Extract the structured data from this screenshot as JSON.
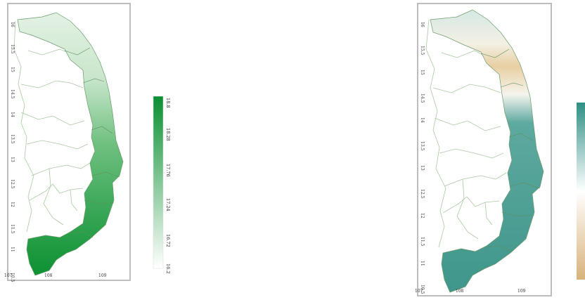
{
  "left_map": {
    "y_ticks": [
      "16",
      "15.5",
      "15",
      "14.5",
      "14",
      "13.5",
      "13",
      "12.5",
      "12",
      "11.5",
      "11",
      "10.5"
    ],
    "x_ticks": [
      "107",
      "108",
      "109"
    ],
    "colorbar": {
      "ticks": [
        "18.8",
        "18.28",
        "17.76",
        "17.24",
        "16.72",
        "16.2"
      ],
      "range": [
        16.2,
        18.8
      ],
      "colors": [
        "#ffffff",
        "#0b8f31"
      ]
    }
  },
  "right_map": {
    "y_ticks": [
      "16",
      "15.5",
      "15",
      "14.5",
      "14",
      "13.5",
      "13",
      "12.5",
      "12",
      "11.5",
      "11",
      "10.5"
    ],
    "x_ticks": [
      "107",
      "108",
      "109"
    ],
    "colorbar": {
      "colors": [
        "#d8b27a",
        "#ffffff",
        "#2e8f83"
      ]
    }
  }
}
